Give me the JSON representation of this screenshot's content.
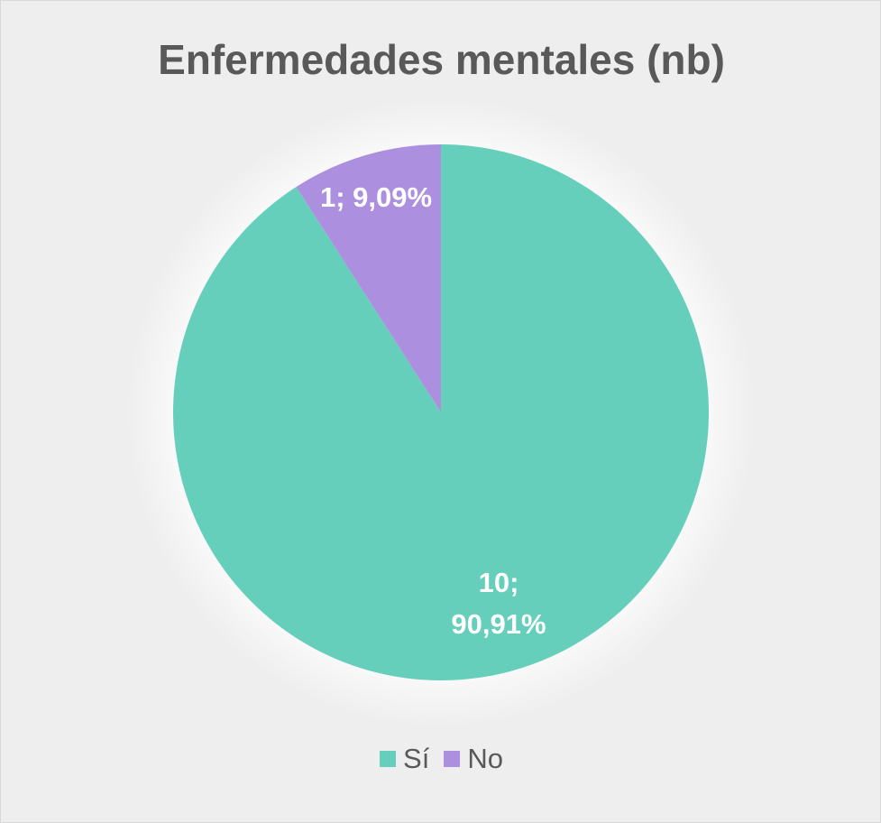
{
  "chart_data": {
    "type": "pie",
    "title": "Enfermedades mentales (nb)",
    "slices": [
      {
        "label": "Sí",
        "value": 10,
        "percent": 90.91,
        "data_label_lines": [
          "10;",
          "90,91%"
        ],
        "color": "#66cfbb"
      },
      {
        "label": "No",
        "value": 1,
        "percent": 9.09,
        "data_label_lines": [
          "1; 9,09%"
        ],
        "color": "#ad8fdf"
      }
    ],
    "legend_position": "bottom",
    "start_angle": "12 o'clock",
    "direction": "clockwise"
  },
  "colors": {
    "background": "#eeeeee",
    "title": "#595959",
    "data_label": "#ffffff"
  }
}
